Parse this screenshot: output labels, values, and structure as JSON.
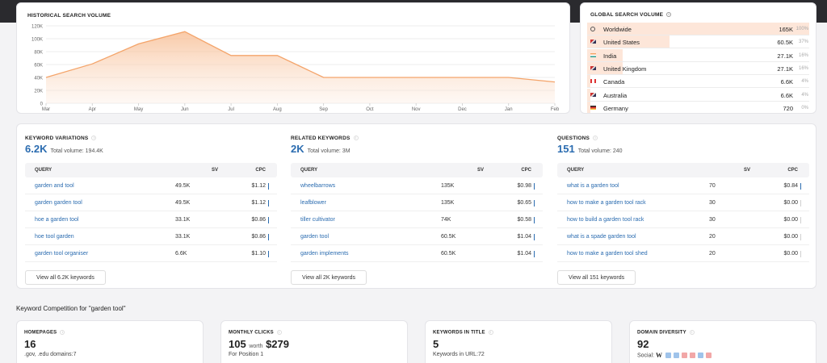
{
  "historical": {
    "title": "HISTORICAL SEARCH VOLUME",
    "chart_data": {
      "type": "area",
      "categories": [
        "Mar",
        "Apr",
        "May",
        "Jun",
        "Jul",
        "Aug",
        "Sep",
        "Oct",
        "Nov",
        "Dec",
        "Jan",
        "Feb"
      ],
      "values": [
        40000,
        61000,
        92000,
        111000,
        74000,
        74000,
        40000,
        40000,
        40000,
        40000,
        40000,
        33000
      ],
      "yticks": [
        "0",
        "20K",
        "40K",
        "60K",
        "80K",
        "100K",
        "120K"
      ],
      "ylim": [
        0,
        120000
      ],
      "grid": true,
      "color": "#f4a46a"
    }
  },
  "global": {
    "title": "GLOBAL SEARCH VOLUME",
    "rows": [
      {
        "name": "Worldwide",
        "value": "165K",
        "pct": "100%",
        "share": 1.0,
        "flag": "globe-icon"
      },
      {
        "name": "United States",
        "value": "60.5K",
        "pct": "37%",
        "share": 0.37,
        "flag": "flag-us-icon"
      },
      {
        "name": "India",
        "value": "27.1K",
        "pct": "16%",
        "share": 0.16,
        "flag": "flag-in-icon"
      },
      {
        "name": "United Kingdom",
        "value": "27.1K",
        "pct": "16%",
        "share": 0.16,
        "flag": "flag-uk-icon"
      },
      {
        "name": "Canada",
        "value": "6.6K",
        "pct": "4%",
        "share": 0.04,
        "flag": "flag-ca-icon"
      },
      {
        "name": "Australia",
        "value": "6.6K",
        "pct": "4%",
        "share": 0.04,
        "flag": "flag-au-icon"
      },
      {
        "name": "Germany",
        "value": "720",
        "pct": "0%",
        "share": 0.0,
        "flag": "flag-de-icon"
      }
    ]
  },
  "panels": [
    {
      "title": "KEYWORD VARIATIONS",
      "count": "6.2K",
      "total": "Total volume: 194.4K",
      "headers": {
        "query": "QUERY",
        "sv": "SV",
        "cpc": "CPC"
      },
      "rows": [
        {
          "q": "garden and tool",
          "sv": "49.5K",
          "cpc": "$1.12"
        },
        {
          "q": "garden garden tool",
          "sv": "49.5K",
          "cpc": "$1.12"
        },
        {
          "q": "hoe a garden tool",
          "sv": "33.1K",
          "cpc": "$0.86"
        },
        {
          "q": "hoe tool garden",
          "sv": "33.1K",
          "cpc": "$0.86"
        },
        {
          "q": "garden tool organiser",
          "sv": "6.6K",
          "cpc": "$1.10"
        }
      ],
      "button": "View all 6.2K keywords"
    },
    {
      "title": "RELATED KEYWORDS",
      "count": "2K",
      "total": "Total volume: 3M",
      "headers": {
        "query": "QUERY",
        "sv": "SV",
        "cpc": "CPC"
      },
      "rows": [
        {
          "q": "wheelbarrows",
          "sv": "135K",
          "cpc": "$0.98"
        },
        {
          "q": "leafblower",
          "sv": "135K",
          "cpc": "$0.65"
        },
        {
          "q": "tiller cultivator",
          "sv": "74K",
          "cpc": "$0.58"
        },
        {
          "q": "garden tool",
          "sv": "60.5K",
          "cpc": "$1.04"
        },
        {
          "q": "garden implements",
          "sv": "60.5K",
          "cpc": "$1.04"
        }
      ],
      "button": "View all 2K keywords"
    },
    {
      "title": "QUESTIONS",
      "count": "151",
      "total": "Total volume: 240",
      "headers": {
        "query": "QUERY",
        "sv": "SV",
        "cpc": "CPC"
      },
      "rows": [
        {
          "q": "what is a garden tool",
          "sv": "70",
          "cpc": "$0.84"
        },
        {
          "q": "how to make a garden tool rack",
          "sv": "30",
          "cpc": "$0.00"
        },
        {
          "q": "how to build a garden tool rack",
          "sv": "30",
          "cpc": "$0.00"
        },
        {
          "q": "what is a spade garden tool",
          "sv": "20",
          "cpc": "$0.00"
        },
        {
          "q": "how to make a garden tool shed",
          "sv": "20",
          "cpc": "$0.00"
        }
      ],
      "button": "View all 151 keywords"
    }
  ],
  "competition": {
    "title": "Keyword Competition for \"garden tool\"",
    "homepages": {
      "label": "HOMEPAGES",
      "value": "16",
      "sub": ".gov, .edu domains:7"
    },
    "clicks": {
      "label": "MONTHLY CLICKS",
      "value": "105",
      "worth": "worth",
      "money": "$279",
      "sub": "For Position 1"
    },
    "title_kw": {
      "label": "KEYWORDS IN TITLE",
      "value": "5",
      "sub": "Keywords in URL:72"
    },
    "diversity": {
      "label": "DOMAIN DIVERSITY",
      "value": "92",
      "sub": "Social:",
      "wiki": "W"
    }
  }
}
